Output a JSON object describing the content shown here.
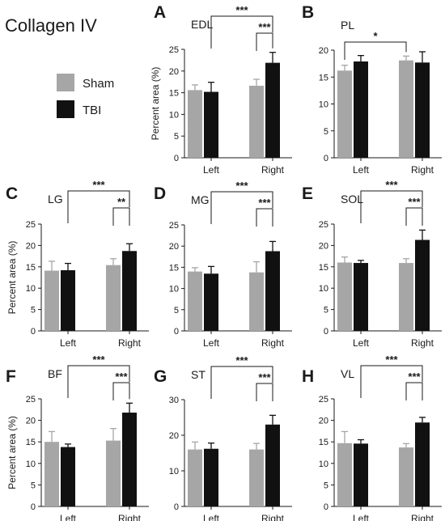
{
  "figure_title": "Collagen IV",
  "legend": [
    {
      "label": "Sham",
      "color": "#a6a6a6"
    },
    {
      "label": "TBI",
      "color": "#111111"
    }
  ],
  "chart_data": [
    {
      "type": "bar",
      "panel": "A",
      "title": "EDL",
      "categories": [
        "Left",
        "Right"
      ],
      "ylabel": "Percent area (%)",
      "ylim": [
        0,
        25
      ],
      "yticks": [
        0,
        5,
        10,
        15,
        20,
        25
      ],
      "series": [
        {
          "name": "Sham",
          "values": [
            15.6,
            16.6
          ],
          "errors": [
            1.2,
            1.5
          ]
        },
        {
          "name": "TBI",
          "values": [
            15.2,
            21.9
          ],
          "errors": [
            2.2,
            2.4
          ]
        }
      ],
      "annotations": [
        {
          "text": "***",
          "from": "TBI Left",
          "to": "TBI Right"
        },
        {
          "text": "***",
          "from": "Sham Right",
          "to": "TBI Right"
        }
      ]
    },
    {
      "type": "bar",
      "panel": "B",
      "title": "PL",
      "categories": [
        "Left",
        "Right"
      ],
      "ylabel": "",
      "ylim": [
        0,
        20
      ],
      "yticks": [
        0,
        5,
        10,
        15,
        20
      ],
      "series": [
        {
          "name": "Sham",
          "values": [
            16.2,
            18.1
          ],
          "errors": [
            1.0,
            0.8
          ]
        },
        {
          "name": "TBI",
          "values": [
            17.9,
            17.7
          ],
          "errors": [
            1.1,
            2.0
          ]
        }
      ],
      "annotations": [
        {
          "text": "*",
          "from": "Sham Left",
          "to": "Sham Right"
        }
      ]
    },
    {
      "type": "bar",
      "panel": "C",
      "title": "LG",
      "categories": [
        "Left",
        "Right"
      ],
      "ylabel": "Percent area (%)",
      "ylim": [
        0,
        25
      ],
      "yticks": [
        0,
        5,
        10,
        15,
        20,
        25
      ],
      "series": [
        {
          "name": "Sham",
          "values": [
            14.1,
            15.4
          ],
          "errors": [
            2.2,
            1.5
          ]
        },
        {
          "name": "TBI",
          "values": [
            14.2,
            18.7
          ],
          "errors": [
            1.6,
            1.7
          ]
        }
      ],
      "annotations": [
        {
          "text": "***",
          "from": "TBI Left",
          "to": "TBI Right"
        },
        {
          "text": "**",
          "from": "Sham Right",
          "to": "TBI Right"
        }
      ]
    },
    {
      "type": "bar",
      "panel": "D",
      "title": "MG",
      "categories": [
        "Left",
        "Right"
      ],
      "ylabel": "",
      "ylim": [
        0,
        25
      ],
      "yticks": [
        0,
        5,
        10,
        15,
        20,
        25
      ],
      "series": [
        {
          "name": "Sham",
          "values": [
            14.0,
            13.8
          ],
          "errors": [
            0.9,
            2.5
          ]
        },
        {
          "name": "TBI",
          "values": [
            13.5,
            18.8
          ],
          "errors": [
            1.7,
            2.3
          ]
        }
      ],
      "annotations": [
        {
          "text": "***",
          "from": "TBI Left",
          "to": "TBI Right"
        },
        {
          "text": "***",
          "from": "Sham Right",
          "to": "TBI Right"
        }
      ]
    },
    {
      "type": "bar",
      "panel": "E",
      "title": "SOL",
      "categories": [
        "Left",
        "Right"
      ],
      "ylabel": "",
      "ylim": [
        0,
        25
      ],
      "yticks": [
        0,
        5,
        10,
        15,
        20,
        25
      ],
      "series": [
        {
          "name": "Sham",
          "values": [
            16.0,
            15.9
          ],
          "errors": [
            1.3,
            1.0
          ]
        },
        {
          "name": "TBI",
          "values": [
            15.9,
            21.3
          ],
          "errors": [
            0.6,
            2.3
          ]
        }
      ],
      "annotations": [
        {
          "text": "***",
          "from": "TBI Left",
          "to": "TBI Right"
        },
        {
          "text": "***",
          "from": "Sham Right",
          "to": "TBI Right"
        }
      ]
    },
    {
      "type": "bar",
      "panel": "F",
      "title": "BF",
      "categories": [
        "Left",
        "Right"
      ],
      "ylabel": "Percent area (%)",
      "ylim": [
        0,
        25
      ],
      "yticks": [
        0,
        5,
        10,
        15,
        20,
        25
      ],
      "series": [
        {
          "name": "Sham",
          "values": [
            15.0,
            15.3
          ],
          "errors": [
            2.4,
            2.8
          ]
        },
        {
          "name": "TBI",
          "values": [
            13.8,
            21.8
          ],
          "errors": [
            0.7,
            2.2
          ]
        }
      ],
      "annotations": [
        {
          "text": "***",
          "from": "TBI Left",
          "to": "TBI Right"
        },
        {
          "text": "***",
          "from": "Sham Right",
          "to": "TBI Right"
        }
      ]
    },
    {
      "type": "bar",
      "panel": "G",
      "title": "ST",
      "categories": [
        "Left",
        "Right"
      ],
      "ylabel": "",
      "ylim": [
        0,
        30
      ],
      "yticks": [
        0,
        10,
        20,
        30
      ],
      "series": [
        {
          "name": "Sham",
          "values": [
            16.0,
            16.0
          ],
          "errors": [
            2.1,
            1.7
          ]
        },
        {
          "name": "TBI",
          "values": [
            16.2,
            23.0
          ],
          "errors": [
            1.6,
            2.6
          ]
        }
      ],
      "annotations": [
        {
          "text": "***",
          "from": "TBI Left",
          "to": "TBI Right"
        },
        {
          "text": "***",
          "from": "Sham Right",
          "to": "TBI Right"
        }
      ]
    },
    {
      "type": "bar",
      "panel": "H",
      "title": "VL",
      "categories": [
        "Left",
        "Right"
      ],
      "ylabel": "",
      "ylim": [
        0,
        25
      ],
      "yticks": [
        0,
        5,
        10,
        15,
        20,
        25
      ],
      "series": [
        {
          "name": "Sham",
          "values": [
            14.7,
            13.7
          ],
          "errors": [
            2.7,
            0.9
          ]
        },
        {
          "name": "TBI",
          "values": [
            14.6,
            19.5
          ],
          "errors": [
            0.9,
            1.2
          ]
        }
      ],
      "annotations": [
        {
          "text": "***",
          "from": "TBI Left",
          "to": "TBI Right"
        },
        {
          "text": "***",
          "from": "Sham Right",
          "to": "TBI Right"
        }
      ]
    }
  ]
}
